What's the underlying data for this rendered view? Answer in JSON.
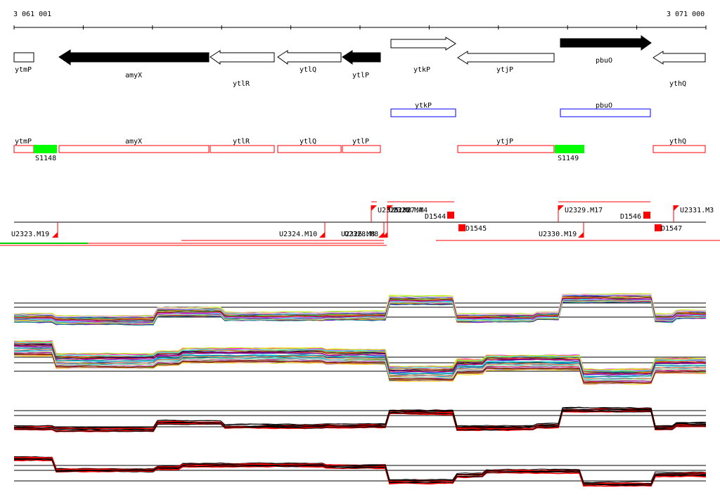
{
  "ruler": {
    "start_label": "3 061 001",
    "end_label": "3 071 000"
  },
  "gene_track": [
    {
      "name": "ytmP",
      "strand": "+",
      "fill": "white"
    },
    {
      "name": "amyX",
      "strand": "-",
      "fill": "black"
    },
    {
      "name": "ytlR",
      "strand": "-",
      "fill": "white"
    },
    {
      "name": "ytlQ",
      "strand": "-",
      "fill": "white"
    },
    {
      "name": "ytlP",
      "strand": "-",
      "fill": "black"
    },
    {
      "name": "ytkP",
      "strand": "+",
      "fill": "white"
    },
    {
      "name": "ytjP",
      "strand": "-",
      "fill": "white"
    },
    {
      "name": "pbuO",
      "strand": "+",
      "fill": "black"
    },
    {
      "name": "ythQ",
      "strand": "-",
      "fill": "white"
    }
  ],
  "blue_features": [
    "ytkP",
    "pbuO"
  ],
  "red_features": [
    "ytmP",
    "amyX",
    "ytlR",
    "ytlQ",
    "ytlP",
    "ytjP",
    "ythQ"
  ],
  "green_features": [
    "S1148",
    "S1149"
  ],
  "segments": {
    "upper": [
      "U2325.M8",
      "U2326.M4",
      "U2327.M4",
      "D1544",
      "U2329.M17",
      "D1546",
      "U2331.M3"
    ],
    "lower": [
      "U2323.M19",
      "U2324.M10",
      "U2326.M8",
      "U2328.M8",
      "D1545",
      "U2330.M19",
      "D1547"
    ]
  },
  "colors": {
    "feature_red": "#ff0000",
    "feature_blue": "#0000ff",
    "feature_green": "#00ff00",
    "arrow_black": "#000000"
  },
  "expression_panels": [
    {
      "name": "panel-1",
      "style": "multicolor"
    },
    {
      "name": "panel-2",
      "style": "multicolor"
    },
    {
      "name": "panel-3",
      "style": "red-black"
    },
    {
      "name": "panel-4",
      "style": "red-black"
    }
  ]
}
